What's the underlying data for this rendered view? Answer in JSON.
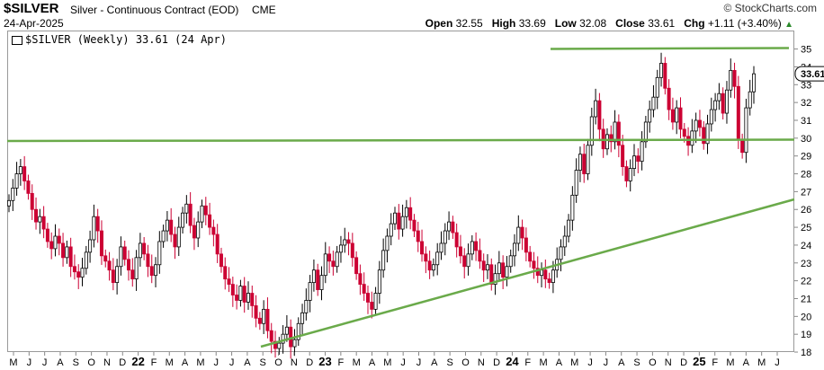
{
  "header": {
    "symbol": "$SILVER",
    "description": "Silver - Continuous Contract (EOD)",
    "exchange": "CME",
    "date": "24-Apr-2025",
    "logo": "© StockCharts.com",
    "open_label": "Open",
    "open": "32.55",
    "high_label": "High",
    "high": "33.69",
    "low_label": "Low",
    "low": "32.08",
    "close_label": "Close",
    "close": "33.61",
    "chg_label": "Chg",
    "chg": "+1.11 (+3.40%)",
    "chg_arrow": "▲"
  },
  "legend": {
    "text": "$SILVER (Weekly) 33.61 (24 Apr)"
  },
  "colors": {
    "up": "#000000",
    "down": "#cc0033",
    "trend": "#6aaa4a"
  },
  "chart_data": {
    "type": "candlestick",
    "interval": "weekly",
    "ylim": [
      17,
      35
    ],
    "y_ticks": [
      18,
      19,
      20,
      21,
      22,
      23,
      24,
      25,
      26,
      27,
      28,
      29,
      30,
      31,
      32,
      33,
      34,
      35
    ],
    "last_price_label": "33.61",
    "x_labels": [
      "M",
      "J",
      "J",
      "A",
      "S",
      "O",
      "N",
      "D",
      "22",
      "F",
      "M",
      "A",
      "M",
      "J",
      "J",
      "A",
      "S",
      "O",
      "N",
      "D",
      "23",
      "F",
      "M",
      "A",
      "M",
      "J",
      "J",
      "A",
      "S",
      "O",
      "N",
      "D",
      "24",
      "F",
      "M",
      "A",
      "M",
      "J",
      "J",
      "A",
      "S",
      "O",
      "N",
      "D",
      "25",
      "F",
      "M",
      "A",
      "M",
      "J"
    ],
    "weekly_close": [
      26.5,
      27.2,
      28.0,
      28.4,
      27.6,
      26.9,
      26.0,
      25.3,
      25.6,
      24.9,
      24.2,
      23.8,
      24.5,
      24.1,
      23.3,
      23.9,
      22.8,
      22.5,
      22.2,
      22.7,
      23.6,
      24.3,
      25.6,
      24.8,
      23.4,
      23.1,
      22.6,
      21.9,
      22.8,
      23.9,
      23.2,
      22.6,
      22.1,
      23.3,
      24.1,
      23.5,
      22.8,
      22.3,
      22.9,
      24.2,
      24.8,
      25.4,
      24.6,
      23.9,
      25.0,
      25.8,
      26.3,
      25.1,
      24.4,
      25.3,
      26.2,
      25.7,
      25.0,
      24.6,
      23.5,
      22.8,
      22.1,
      21.8,
      21.2,
      20.9,
      21.7,
      20.8,
      21.3,
      20.6,
      19.9,
      19.6,
      20.4,
      19.2,
      18.6,
      18.2,
      18.5,
      19.0,
      19.4,
      18.3,
      18.7,
      19.6,
      20.2,
      20.9,
      21.9,
      22.6,
      21.5,
      22.3,
      23.5,
      23.1,
      22.8,
      23.6,
      24.0,
      24.3,
      24.1,
      23.3,
      22.4,
      21.8,
      21.3,
      20.8,
      20.4,
      21.3,
      22.6,
      23.7,
      24.5,
      25.2,
      25.8,
      24.9,
      25.6,
      26.1,
      25.4,
      24.8,
      24.2,
      23.5,
      23.1,
      22.6,
      22.9,
      23.6,
      24.1,
      24.8,
      25.3,
      24.7,
      23.9,
      23.4,
      22.8,
      23.5,
      24.2,
      23.7,
      23.1,
      22.6,
      22.9,
      21.8,
      22.4,
      23.0,
      22.2,
      22.8,
      23.4,
      24.1,
      25.0,
      24.4,
      23.6,
      23.1,
      22.7,
      22.3,
      22.6,
      22.1,
      21.9,
      22.6,
      23.2,
      23.9,
      24.5,
      25.4,
      26.8,
      28.2,
      29.1,
      28.0,
      29.6,
      31.2,
      32.1,
      30.5,
      29.4,
      30.2,
      29.8,
      30.9,
      29.6,
      28.4,
      27.6,
      28.3,
      29.0,
      28.7,
      29.8,
      30.9,
      31.6,
      32.3,
      33.4,
      34.2,
      32.8,
      31.6,
      30.9,
      31.7,
      30.5,
      30.1,
      29.6,
      30.4,
      31.0,
      30.6,
      29.7,
      30.8,
      31.6,
      32.1,
      32.5,
      31.4,
      32.7,
      33.8,
      32.9,
      29.9,
      29.2,
      31.7,
      32.6,
      33.61
    ]
  }
}
